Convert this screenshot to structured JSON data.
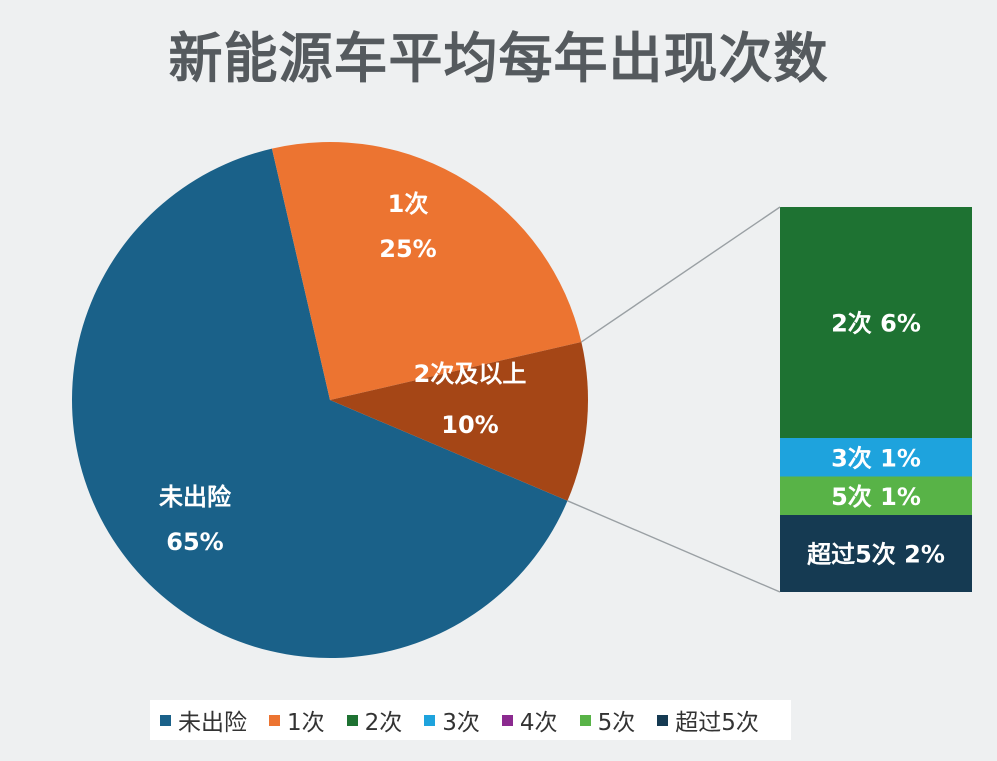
{
  "chart_data": {
    "type": "pie",
    "title": "新能源车平均每年出现次数",
    "slices": [
      {
        "label": "未出险",
        "value": 65,
        "value_label": "65%",
        "color": "#1a6189"
      },
      {
        "label": "1次",
        "value": 25,
        "value_label": "25%",
        "color": "#ec7431"
      },
      {
        "label": "2次及以上",
        "value": 10,
        "value_label": "10%",
        "color": "#a54616"
      }
    ],
    "breakdown": {
      "of": "2次及以上",
      "type": "stacked-bar",
      "segments": [
        {
          "label": "2次",
          "value": 6,
          "text": "2次 6%",
          "color": "#1e7232"
        },
        {
          "label": "3次",
          "value": 1,
          "text": "3次 1%",
          "color": "#1ea3dd"
        },
        {
          "label": "5次",
          "value": 1,
          "text": "5次 1%",
          "color": "#58b347"
        },
        {
          "label": "超过5次",
          "value": 2,
          "text": "超过5次 2%",
          "color": "#153a52"
        }
      ]
    },
    "legend": {
      "placement": "bottom",
      "items": [
        {
          "label": "未出险",
          "color": "#1a6189"
        },
        {
          "label": "1次",
          "color": "#ec7431"
        },
        {
          "label": "2次",
          "color": "#1e7232"
        },
        {
          "label": "3次",
          "color": "#1ea3dd"
        },
        {
          "label": "4次",
          "color": "#8b2a8f"
        },
        {
          "label": "5次",
          "color": "#58b347"
        },
        {
          "label": "超过5次",
          "color": "#153a52"
        }
      ]
    }
  }
}
